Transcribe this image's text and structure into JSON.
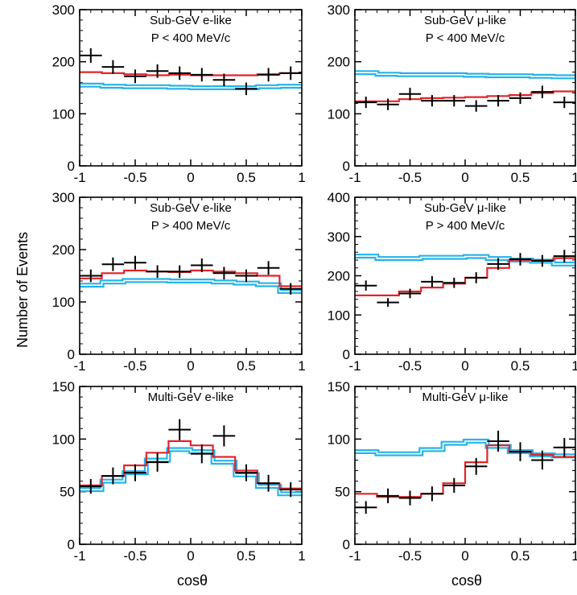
{
  "figure": {
    "ylabel": "Number of Events",
    "xlabel": "cosθ"
  },
  "colors": {
    "data": "#000000",
    "oscillation_fit": "#e0252a",
    "no_oscillation": "#27b3e6",
    "frame": "#000000"
  },
  "chart_data": [
    {
      "type": "line",
      "title": "Sub-GeV e-like",
      "subtitle": "P < 400 MeV/c",
      "xlim": [
        -1,
        1
      ],
      "ylim": [
        0,
        300
      ],
      "xticks": [
        -1,
        -0.5,
        0,
        0.5,
        1
      ],
      "xticklabels": [
        "-1",
        "-0.5",
        "0",
        "0.5",
        "1"
      ],
      "yticks": [
        0,
        100,
        200,
        300
      ],
      "yticklabels": [
        "0",
        "100",
        "200",
        "300"
      ],
      "bin_edges": [
        -1,
        -0.8,
        -0.6,
        -0.4,
        -0.2,
        0,
        0.2,
        0.4,
        0.6,
        0.8,
        1
      ],
      "x": [
        -0.9,
        -0.7,
        -0.5,
        -0.3,
        -0.1,
        0.1,
        0.3,
        0.5,
        0.7,
        0.9
      ],
      "data": {
        "y": [
          212,
          190,
          172,
          182,
          178,
          175,
          165,
          148,
          175,
          178
        ],
        "yerr": [
          14,
          13,
          13,
          13,
          13,
          13,
          12,
          12,
          13,
          13
        ]
      },
      "oscillation_fit": [
        180,
        178,
        176,
        174,
        175,
        174,
        174,
        174,
        176,
        178
      ],
      "no_oscillation": [
        155,
        153,
        152,
        152,
        151,
        150,
        150,
        150,
        152,
        153
      ]
    },
    {
      "type": "line",
      "title": "Sub-GeV μ-like",
      "subtitle": "P < 400 MeV/c",
      "xlim": [
        -1,
        1
      ],
      "ylim": [
        0,
        300
      ],
      "xticks": [
        -1,
        -0.5,
        0,
        0.5,
        1
      ],
      "xticklabels": [
        "-1",
        "-0.5",
        "0",
        "0.5",
        "1"
      ],
      "yticks": [
        0,
        100,
        200,
        300
      ],
      "yticklabels": [
        "0",
        "100",
        "200",
        "300"
      ],
      "bin_edges": [
        -1,
        -0.8,
        -0.6,
        -0.4,
        -0.2,
        0,
        0.2,
        0.4,
        0.6,
        0.8,
        1
      ],
      "x": [
        -0.9,
        -0.7,
        -0.5,
        -0.3,
        -0.1,
        0.1,
        0.3,
        0.5,
        0.7,
        0.9
      ],
      "data": {
        "y": [
          122,
          118,
          138,
          125,
          125,
          115,
          125,
          130,
          142,
          122
        ],
        "yerr": [
          11,
          11,
          12,
          11,
          11,
          11,
          11,
          11,
          12,
          11
        ]
      },
      "oscillation_fit": [
        124,
        124,
        128,
        130,
        131,
        132,
        134,
        136,
        140,
        143
      ],
      "no_oscillation": [
        179,
        176,
        175,
        175,
        175,
        174,
        173,
        173,
        172,
        171
      ]
    },
    {
      "type": "line",
      "title": "Sub-GeV e-like",
      "subtitle": "P > 400 MeV/c",
      "xlim": [
        -1,
        1
      ],
      "ylim": [
        0,
        300
      ],
      "xticks": [
        -1,
        -0.5,
        0,
        0.5,
        1
      ],
      "xticklabels": [
        "-1",
        "-0.5",
        "0",
        "0.5",
        "1"
      ],
      "yticks": [
        0,
        100,
        200,
        300
      ],
      "yticklabels": [
        "0",
        "100",
        "200",
        "300"
      ],
      "bin_edges": [
        -1,
        -0.8,
        -0.6,
        -0.4,
        -0.2,
        0,
        0.2,
        0.4,
        0.6,
        0.8,
        1
      ],
      "x": [
        -0.9,
        -0.7,
        -0.5,
        -0.3,
        -0.1,
        0.1,
        0.3,
        0.5,
        0.7,
        0.9
      ],
      "data": {
        "y": [
          150,
          172,
          175,
          158,
          158,
          170,
          155,
          150,
          165,
          125
        ],
        "yerr": [
          12,
          13,
          13,
          12,
          12,
          13,
          12,
          12,
          13,
          11
        ]
      },
      "oscillation_fit": [
        145,
        155,
        160,
        158,
        157,
        160,
        158,
        155,
        150,
        130
      ],
      "no_oscillation": [
        132,
        138,
        141,
        141,
        140,
        140,
        138,
        136,
        133,
        120
      ]
    },
    {
      "type": "line",
      "title": "Sub-GeV μ-like",
      "subtitle": "P > 400 MeV/c",
      "xlim": [
        -1,
        1
      ],
      "ylim": [
        0,
        400
      ],
      "xticks": [
        -1,
        -0.5,
        0,
        0.5,
        1
      ],
      "xticklabels": [
        "-1",
        "-0.5",
        "0",
        "0.5",
        "1"
      ],
      "yticks": [
        0,
        100,
        200,
        300,
        400
      ],
      "yticklabels": [
        "0",
        "100",
        "200",
        "300",
        "400"
      ],
      "bin_edges": [
        -1,
        -0.8,
        -0.6,
        -0.4,
        -0.2,
        0,
        0.2,
        0.4,
        0.6,
        0.8,
        1
      ],
      "x": [
        -0.9,
        -0.7,
        -0.5,
        -0.3,
        -0.1,
        0.1,
        0.3,
        0.5,
        0.7,
        0.9
      ],
      "data": {
        "y": [
          175,
          132,
          155,
          185,
          182,
          195,
          230,
          242,
          238,
          250
        ],
        "yerr": [
          13,
          11,
          12,
          14,
          13,
          14,
          15,
          16,
          15,
          16
        ]
      },
      "oscillation_fit": [
        150,
        150,
        160,
        170,
        180,
        195,
        220,
        240,
        240,
        245
      ],
      "no_oscillation": [
        250,
        244,
        244,
        247,
        247,
        249,
        244,
        240,
        237,
        230
      ]
    },
    {
      "type": "line",
      "title": "Multi-GeV e-like",
      "subtitle": "",
      "xlim": [
        -1,
        1
      ],
      "ylim": [
        0,
        150
      ],
      "xticks": [
        -1,
        -0.5,
        0,
        0.5,
        1
      ],
      "xticklabels": [
        "-1",
        "-0.5",
        "0",
        "0.5",
        "1"
      ],
      "yticks": [
        0,
        50,
        100,
        150
      ],
      "yticklabels": [
        "0",
        "50",
        "100",
        "150"
      ],
      "bin_edges": [
        -1,
        -0.8,
        -0.6,
        -0.4,
        -0.2,
        0,
        0.2,
        0.4,
        0.6,
        0.8,
        1
      ],
      "x": [
        -0.9,
        -0.7,
        -0.5,
        -0.3,
        -0.1,
        0.1,
        0.3,
        0.5,
        0.7,
        0.9
      ],
      "data": {
        "y": [
          55,
          65,
          68,
          78,
          109,
          86,
          103,
          68,
          58,
          52
        ],
        "yerr": [
          7,
          8,
          8,
          9,
          10,
          9,
          10,
          8,
          8,
          7
        ]
      },
      "oscillation_fit": [
        56,
        65,
        75,
        87,
        98,
        94,
        83,
        70,
        58,
        53
      ],
      "no_oscillation": [
        52,
        60,
        68,
        80,
        90,
        88,
        78,
        66,
        55,
        48
      ]
    },
    {
      "type": "line",
      "title": "Multi-GeV μ-like",
      "subtitle": "",
      "xlim": [
        -1,
        1
      ],
      "ylim": [
        0,
        150
      ],
      "xticks": [
        -1,
        -0.5,
        0,
        0.5,
        1
      ],
      "xticklabels": [
        "-1",
        "-0.5",
        "0",
        "0.5",
        "1"
      ],
      "yticks": [
        0,
        50,
        100,
        150
      ],
      "yticklabels": [
        "0",
        "50",
        "100",
        "150"
      ],
      "bin_edges": [
        -1,
        -0.8,
        -0.6,
        -0.4,
        -0.2,
        0,
        0.2,
        0.4,
        0.6,
        0.8,
        1
      ],
      "x": [
        -0.9,
        -0.7,
        -0.5,
        -0.3,
        -0.1,
        0.1,
        0.3,
        0.5,
        0.7,
        0.9
      ],
      "data": {
        "y": [
          35,
          46,
          44,
          48,
          56,
          74,
          98,
          88,
          80,
          92
        ],
        "yerr": [
          6,
          7,
          7,
          7,
          7,
          8,
          10,
          9,
          9,
          9
        ]
      },
      "oscillation_fit": [
        48,
        45,
        45,
        48,
        58,
        78,
        94,
        88,
        85,
        83
      ],
      "no_oscillation": [
        88,
        86,
        86,
        90,
        96,
        98,
        93,
        88,
        85,
        84
      ]
    }
  ]
}
